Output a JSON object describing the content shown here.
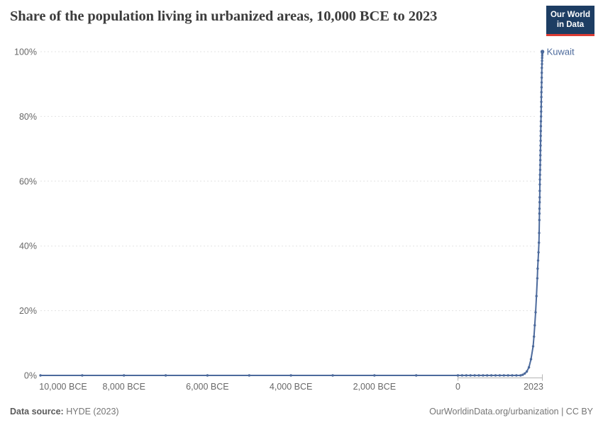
{
  "header": {
    "title": "Share of the population living in urbanized areas, 10,000 BCE to 2023",
    "logo": {
      "line1": "Our World",
      "line2": "in Data",
      "bg_color": "#1d3d63",
      "accent_color": "#dc3b33"
    }
  },
  "chart_data": {
    "type": "line",
    "title": "Share of the population living in urbanized areas, 10,000 BCE to 2023",
    "xlabel": "",
    "ylabel": "",
    "x_range": [
      -10000,
      2023
    ],
    "ylim": [
      0,
      100
    ],
    "grid": "horizontal-dashed",
    "legend_position": "end-of-line",
    "line_color": "#4C6A9C",
    "grid_color": "#e3e3e3",
    "axis_color": "#b3b3b3",
    "tick_label_color": "#686868",
    "y_ticks": [
      {
        "label": "0%",
        "value": 0
      },
      {
        "label": "20%",
        "value": 20
      },
      {
        "label": "40%",
        "value": 40
      },
      {
        "label": "60%",
        "value": 60
      },
      {
        "label": "80%",
        "value": 80
      },
      {
        "label": "100%",
        "value": 100
      }
    ],
    "x_ticks": [
      {
        "label": "10,000 BCE",
        "year": -10000
      },
      {
        "label": "8,000 BCE",
        "year": -8000
      },
      {
        "label": "6,000 BCE",
        "year": -6000
      },
      {
        "label": "4,000 BCE",
        "year": -4000
      },
      {
        "label": "2,000 BCE",
        "year": -2000
      },
      {
        "label": "0",
        "year": 0
      },
      {
        "label": "2023",
        "year": 2023
      }
    ],
    "series": [
      {
        "name": "Kuwait",
        "color": "#4C6A9C",
        "points": [
          [
            -10000,
            0
          ],
          [
            -9000,
            0
          ],
          [
            -8000,
            0
          ],
          [
            -7000,
            0
          ],
          [
            -6000,
            0
          ],
          [
            -5000,
            0
          ],
          [
            -4000,
            0
          ],
          [
            -3000,
            0
          ],
          [
            -2000,
            0
          ],
          [
            -1000,
            0
          ],
          [
            0,
            0
          ],
          [
            100,
            0
          ],
          [
            200,
            0
          ],
          [
            300,
            0
          ],
          [
            400,
            0
          ],
          [
            500,
            0
          ],
          [
            600,
            0
          ],
          [
            700,
            0
          ],
          [
            800,
            0
          ],
          [
            900,
            0
          ],
          [
            1000,
            0
          ],
          [
            1100,
            0
          ],
          [
            1200,
            0
          ],
          [
            1300,
            0
          ],
          [
            1400,
            0
          ],
          [
            1500,
            0
          ],
          [
            1550,
            0.2
          ],
          [
            1600,
            0.6
          ],
          [
            1650,
            1.2
          ],
          [
            1700,
            2.5
          ],
          [
            1750,
            5
          ],
          [
            1800,
            9
          ],
          [
            1820,
            12
          ],
          [
            1840,
            15.5
          ],
          [
            1860,
            19.5
          ],
          [
            1880,
            24.5
          ],
          [
            1900,
            30
          ],
          [
            1910,
            33
          ],
          [
            1920,
            35.5
          ],
          [
            1930,
            38
          ],
          [
            1940,
            41
          ],
          [
            1945,
            44
          ],
          [
            1950,
            48
          ],
          [
            1952,
            50
          ],
          [
            1954,
            51.5
          ],
          [
            1956,
            53.5
          ],
          [
            1958,
            55
          ],
          [
            1960,
            57
          ],
          [
            1962,
            59
          ],
          [
            1964,
            60.5
          ],
          [
            1966,
            62
          ],
          [
            1968,
            63.5
          ],
          [
            1970,
            65
          ],
          [
            1972,
            66.5
          ],
          [
            1974,
            68
          ],
          [
            1976,
            69.5
          ],
          [
            1978,
            71
          ],
          [
            1980,
            72.5
          ],
          [
            1982,
            74
          ],
          [
            1984,
            75.5
          ],
          [
            1986,
            77
          ],
          [
            1988,
            78.5
          ],
          [
            1990,
            80
          ],
          [
            1992,
            81.5
          ],
          [
            1994,
            83
          ],
          [
            1996,
            84.5
          ],
          [
            1998,
            86
          ],
          [
            2000,
            87.5
          ],
          [
            2002,
            89
          ],
          [
            2004,
            90.5
          ],
          [
            2006,
            92
          ],
          [
            2008,
            93.5
          ],
          [
            2010,
            95
          ],
          [
            2012,
            96.2
          ],
          [
            2014,
            97.2
          ],
          [
            2016,
            98.1
          ],
          [
            2018,
            98.8
          ],
          [
            2020,
            99.4
          ],
          [
            2022,
            99.9
          ],
          [
            2023,
            100
          ]
        ]
      }
    ]
  },
  "footer": {
    "source_label": "Data source:",
    "source_value": "HYDE (2023)",
    "license": "OurWorldinData.org/urbanization | CC BY"
  }
}
